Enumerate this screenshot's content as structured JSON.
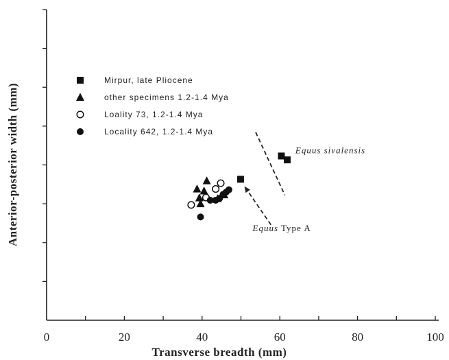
{
  "chart_data": {
    "type": "scatter",
    "title": "",
    "xlabel": "Transverse breadth (mm)",
    "ylabel": "Anterior-posterior width (mm)",
    "xlim": [
      0,
      100
    ],
    "ylim": [
      0,
      80
    ],
    "x_ticks": [
      "0",
      "20",
      "40",
      "60",
      "80",
      "100"
    ],
    "grid": false,
    "legend_placement": "top-left",
    "series": [
      {
        "name": "Mirpur, late Pliocene",
        "marker": "filled-square",
        "points": [
          [
            49.9,
            36.3
          ],
          [
            60.4,
            42.3
          ],
          [
            61.9,
            41.3
          ]
        ]
      },
      {
        "name": "other specimens 1.2-1.4 Mya",
        "marker": "filled-triangle",
        "points": [
          [
            38.7,
            33.8
          ],
          [
            40.5,
            33.3
          ],
          [
            41.2,
            35.9
          ],
          [
            39.3,
            31.5
          ],
          [
            39.6,
            30.0
          ],
          [
            40.8,
            31.7
          ],
          [
            44.0,
            31.3
          ],
          [
            45.7,
            32.3
          ]
        ]
      },
      {
        "name": "Loality 73, 1.2-1.4 Mya",
        "marker": "open-circle",
        "points": [
          [
            37.2,
            29.7
          ],
          [
            41.0,
            31.6
          ],
          [
            43.5,
            33.8
          ],
          [
            44.8,
            35.3
          ]
        ]
      },
      {
        "name": "Locality 642, 1.2-1.4 Mya",
        "marker": "filled-circle",
        "points": [
          [
            39.6,
            26.6
          ],
          [
            42.1,
            30.9
          ],
          [
            43.5,
            30.9
          ],
          [
            44.5,
            31.4
          ],
          [
            45.4,
            32.4
          ],
          [
            46.2,
            33.0
          ],
          [
            46.9,
            33.6
          ]
        ]
      }
    ],
    "annotations": [
      {
        "id": "sivalensis",
        "parts": [
          {
            "text": "Equus sivalensis",
            "italic": true
          }
        ],
        "anchor": [
          64.0,
          43.0
        ],
        "line": {
          "from": [
            53.8,
            48.4
          ],
          "to": [
            61.3,
            32.2
          ],
          "dashed": true,
          "arrow": false
        }
      },
      {
        "id": "typeA",
        "parts": [
          {
            "text": "Equus",
            "italic": true
          },
          {
            "text": " Type A",
            "italic": false
          }
        ],
        "anchor": [
          53.0,
          23.0
        ],
        "line": {
          "from": [
            57.7,
            24.6
          ],
          "to": [
            50.9,
            34.5
          ],
          "dashed": true,
          "arrow": true
        }
      }
    ],
    "colors": {
      "marker": "#111111",
      "axis": "#222222"
    }
  }
}
